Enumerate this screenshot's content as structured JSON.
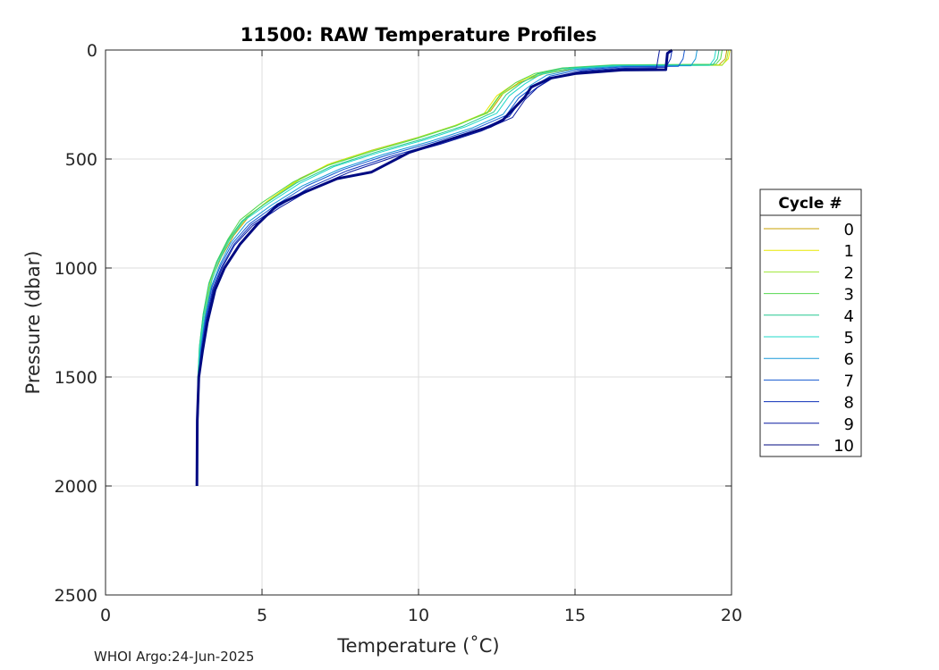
{
  "chart_data": {
    "type": "line",
    "title": "11500: RAW Temperature Profiles",
    "xlabel": "Temperature (˚C)",
    "ylabel": "Pressure (dbar)",
    "xlim": [
      0,
      20
    ],
    "ylim": [
      0,
      2500
    ],
    "y_reversed": true,
    "x_ticks": [
      "0",
      "5",
      "10",
      "15",
      "20"
    ],
    "y_ticks": [
      "0",
      "500",
      "1000",
      "1500",
      "2000",
      "2500"
    ],
    "grid": true,
    "legend": {
      "title": "Cycle #",
      "placement": "right"
    },
    "series": [
      {
        "name": "0",
        "color": "#c8a000",
        "width": 1,
        "points": [
          [
            19.85,
            0
          ],
          [
            19.8,
            40
          ],
          [
            19.6,
            68
          ],
          [
            16.5,
            70
          ],
          [
            15,
            85
          ],
          [
            14,
            110
          ],
          [
            13.2,
            150
          ],
          [
            12.7,
            200
          ],
          [
            12.3,
            280
          ],
          [
            11.3,
            340
          ],
          [
            10,
            400
          ],
          [
            8.5,
            460
          ],
          [
            7.2,
            520
          ],
          [
            6.2,
            590
          ],
          [
            5.3,
            680
          ],
          [
            4.6,
            760
          ],
          [
            4.1,
            850
          ],
          [
            3.7,
            950
          ],
          [
            3.4,
            1050
          ],
          [
            3.2,
            1200
          ],
          [
            3.05,
            1350
          ],
          [
            2.98,
            1500
          ],
          [
            2.92,
            1800
          ],
          [
            2.9,
            2000
          ]
        ]
      },
      {
        "name": "1",
        "color": "#e8e800",
        "width": 1,
        "points": [
          [
            19.95,
            0
          ],
          [
            19.9,
            40
          ],
          [
            19.7,
            68
          ],
          [
            16.4,
            70
          ],
          [
            14.8,
            85
          ],
          [
            13.8,
            110
          ],
          [
            13.1,
            150
          ],
          [
            12.5,
            210
          ],
          [
            12.1,
            290
          ],
          [
            11.1,
            350
          ],
          [
            9.8,
            410
          ],
          [
            8.4,
            465
          ],
          [
            7.1,
            525
          ],
          [
            6.1,
            600
          ],
          [
            5.2,
            690
          ],
          [
            4.5,
            770
          ],
          [
            4.0,
            860
          ],
          [
            3.6,
            960
          ],
          [
            3.35,
            1060
          ],
          [
            3.15,
            1200
          ],
          [
            3.02,
            1350
          ],
          [
            2.96,
            1500
          ],
          [
            2.92,
            1800
          ],
          [
            2.9,
            2000
          ]
        ]
      },
      {
        "name": "2",
        "color": "#9ee635",
        "width": 1,
        "points": [
          [
            19.9,
            0
          ],
          [
            19.85,
            40
          ],
          [
            19.7,
            70
          ],
          [
            16.3,
            72
          ],
          [
            14.7,
            88
          ],
          [
            13.8,
            115
          ],
          [
            13.2,
            155
          ],
          [
            12.6,
            210
          ],
          [
            12.2,
            290
          ],
          [
            11.2,
            345
          ],
          [
            9.9,
            405
          ],
          [
            8.5,
            462
          ],
          [
            7.2,
            522
          ],
          [
            6.2,
            595
          ],
          [
            5.3,
            685
          ],
          [
            4.5,
            765
          ],
          [
            4.0,
            855
          ],
          [
            3.65,
            955
          ],
          [
            3.4,
            1055
          ],
          [
            3.2,
            1200
          ],
          [
            3.05,
            1350
          ],
          [
            2.97,
            1500
          ],
          [
            2.92,
            1800
          ],
          [
            2.9,
            2000
          ]
        ]
      },
      {
        "name": "3",
        "color": "#55d850",
        "width": 1,
        "points": [
          [
            19.7,
            0
          ],
          [
            19.65,
            40
          ],
          [
            19.5,
            65
          ],
          [
            16.2,
            68
          ],
          [
            14.6,
            82
          ],
          [
            13.7,
            108
          ],
          [
            13.1,
            150
          ],
          [
            12.6,
            205
          ],
          [
            12.2,
            285
          ],
          [
            11.2,
            348
          ],
          [
            9.9,
            408
          ],
          [
            8.5,
            466
          ],
          [
            7.1,
            530
          ],
          [
            6.0,
            605
          ],
          [
            5.0,
            700
          ],
          [
            4.3,
            780
          ],
          [
            3.9,
            870
          ],
          [
            3.55,
            970
          ],
          [
            3.3,
            1070
          ],
          [
            3.12,
            1210
          ],
          [
            3.0,
            1360
          ],
          [
            2.95,
            1500
          ],
          [
            2.91,
            1800
          ],
          [
            2.9,
            2000
          ]
        ]
      },
      {
        "name": "4",
        "color": "#25c890",
        "width": 1,
        "points": [
          [
            19.6,
            0
          ],
          [
            19.55,
            40
          ],
          [
            19.4,
            68
          ],
          [
            16.2,
            70
          ],
          [
            14.6,
            84
          ],
          [
            13.8,
            110
          ],
          [
            13.3,
            150
          ],
          [
            12.8,
            205
          ],
          [
            12.4,
            285
          ],
          [
            11.4,
            350
          ],
          [
            10.1,
            410
          ],
          [
            8.6,
            470
          ],
          [
            7.2,
            535
          ],
          [
            6.1,
            610
          ],
          [
            5.1,
            705
          ],
          [
            4.35,
            785
          ],
          [
            3.9,
            875
          ],
          [
            3.55,
            975
          ],
          [
            3.3,
            1075
          ],
          [
            3.12,
            1215
          ],
          [
            3.0,
            1360
          ],
          [
            2.95,
            1500
          ],
          [
            2.91,
            1800
          ],
          [
            2.9,
            2000
          ]
        ]
      },
      {
        "name": "5",
        "color": "#20d8c8",
        "width": 1,
        "points": [
          [
            19.5,
            0
          ],
          [
            19.45,
            40
          ],
          [
            19.3,
            70
          ],
          [
            16.3,
            72
          ],
          [
            14.8,
            86
          ],
          [
            13.9,
            112
          ],
          [
            13.4,
            155
          ],
          [
            12.9,
            210
          ],
          [
            12.5,
            290
          ],
          [
            11.5,
            352
          ],
          [
            10.2,
            412
          ],
          [
            8.7,
            472
          ],
          [
            7.3,
            535
          ],
          [
            6.2,
            612
          ],
          [
            5.2,
            705
          ],
          [
            4.4,
            785
          ],
          [
            3.95,
            875
          ],
          [
            3.6,
            975
          ],
          [
            3.35,
            1075
          ],
          [
            3.15,
            1215
          ],
          [
            3.02,
            1360
          ],
          [
            2.96,
            1500
          ],
          [
            2.91,
            1800
          ],
          [
            2.9,
            2000
          ]
        ]
      },
      {
        "name": "6",
        "color": "#1898d8",
        "width": 1,
        "points": [
          [
            18.9,
            0
          ],
          [
            18.85,
            40
          ],
          [
            18.7,
            72
          ],
          [
            16.5,
            74
          ],
          [
            15.0,
            88
          ],
          [
            14.1,
            115
          ],
          [
            13.6,
            160
          ],
          [
            13.1,
            215
          ],
          [
            12.7,
            295
          ],
          [
            11.7,
            358
          ],
          [
            10.4,
            418
          ],
          [
            8.9,
            478
          ],
          [
            7.5,
            545
          ],
          [
            6.3,
            622
          ],
          [
            5.3,
            712
          ],
          [
            4.5,
            795
          ],
          [
            4.0,
            885
          ],
          [
            3.65,
            985
          ],
          [
            3.38,
            1085
          ],
          [
            3.18,
            1225
          ],
          [
            3.04,
            1370
          ],
          [
            2.97,
            1500
          ],
          [
            2.92,
            1800
          ],
          [
            2.9,
            2000
          ]
        ]
      },
      {
        "name": "7",
        "color": "#1558d0",
        "width": 1,
        "points": [
          [
            18.5,
            0
          ],
          [
            18.45,
            40
          ],
          [
            18.3,
            75
          ],
          [
            16.6,
            77
          ],
          [
            15.1,
            92
          ],
          [
            14.2,
            120
          ],
          [
            13.7,
            165
          ],
          [
            13.2,
            220
          ],
          [
            12.8,
            300
          ],
          [
            11.8,
            362
          ],
          [
            10.5,
            422
          ],
          [
            9.0,
            482
          ],
          [
            7.6,
            548
          ],
          [
            6.4,
            625
          ],
          [
            5.4,
            715
          ],
          [
            4.6,
            798
          ],
          [
            4.05,
            888
          ],
          [
            3.68,
            988
          ],
          [
            3.4,
            1088
          ],
          [
            3.2,
            1228
          ],
          [
            3.05,
            1372
          ],
          [
            2.98,
            1500
          ],
          [
            2.92,
            1800
          ],
          [
            2.9,
            2000
          ]
        ]
      },
      {
        "name": "8",
        "color": "#0d2fb8",
        "width": 1,
        "points": [
          [
            18.1,
            0
          ],
          [
            18.05,
            40
          ],
          [
            17.9,
            80
          ],
          [
            16.6,
            82
          ],
          [
            15.2,
            96
          ],
          [
            14.3,
            125
          ],
          [
            13.8,
            170
          ],
          [
            13.3,
            225
          ],
          [
            12.9,
            305
          ],
          [
            11.9,
            368
          ],
          [
            10.6,
            428
          ],
          [
            9.1,
            488
          ],
          [
            7.7,
            555
          ],
          [
            6.5,
            632
          ],
          [
            5.5,
            720
          ],
          [
            4.65,
            802
          ],
          [
            4.1,
            892
          ],
          [
            3.72,
            992
          ],
          [
            3.43,
            1092
          ],
          [
            3.22,
            1232
          ],
          [
            3.07,
            1376
          ],
          [
            2.99,
            1500
          ],
          [
            2.93,
            1800
          ],
          [
            2.9,
            2000
          ]
        ]
      },
      {
        "name": "9",
        "color": "#0a1aa0",
        "width": 1,
        "points": [
          [
            17.7,
            0
          ],
          [
            17.65,
            40
          ],
          [
            17.6,
            84
          ],
          [
            16.6,
            86
          ],
          [
            15.2,
            100
          ],
          [
            14.3,
            128
          ],
          [
            13.8,
            172
          ],
          [
            13.4,
            228
          ],
          [
            13.0,
            310
          ],
          [
            12.0,
            372
          ],
          [
            10.7,
            432
          ],
          [
            9.2,
            492
          ],
          [
            7.8,
            560
          ],
          [
            6.6,
            636
          ],
          [
            5.55,
            724
          ],
          [
            4.7,
            806
          ],
          [
            4.12,
            896
          ],
          [
            3.74,
            996
          ],
          [
            3.45,
            1096
          ],
          [
            3.24,
            1236
          ],
          [
            3.08,
            1380
          ],
          [
            3.0,
            1500
          ],
          [
            2.93,
            1800
          ],
          [
            2.9,
            2000
          ]
        ]
      },
      {
        "name": "10",
        "color": "#000a82",
        "width": 3,
        "points": [
          [
            18.1,
            0
          ],
          [
            17.95,
            15
          ],
          [
            17.9,
            90
          ],
          [
            16.5,
            92
          ],
          [
            15.0,
            108
          ],
          [
            14.2,
            130
          ],
          [
            13.6,
            170
          ],
          [
            13.4,
            215
          ],
          [
            13.1,
            260
          ],
          [
            12.7,
            320
          ],
          [
            12.3,
            350
          ],
          [
            11.0,
            410
          ],
          [
            9.7,
            470
          ],
          [
            8.5,
            560
          ],
          [
            7.4,
            590
          ],
          [
            6.4,
            650
          ],
          [
            5.5,
            710
          ],
          [
            4.85,
            800
          ],
          [
            4.3,
            890
          ],
          [
            3.8,
            1000
          ],
          [
            3.5,
            1100
          ],
          [
            3.25,
            1250
          ],
          [
            3.1,
            1380
          ],
          [
            2.98,
            1500
          ],
          [
            2.93,
            1700
          ],
          [
            2.92,
            2000
          ]
        ]
      }
    ]
  },
  "footer": "WHOI Argo:24-Jun-2025"
}
